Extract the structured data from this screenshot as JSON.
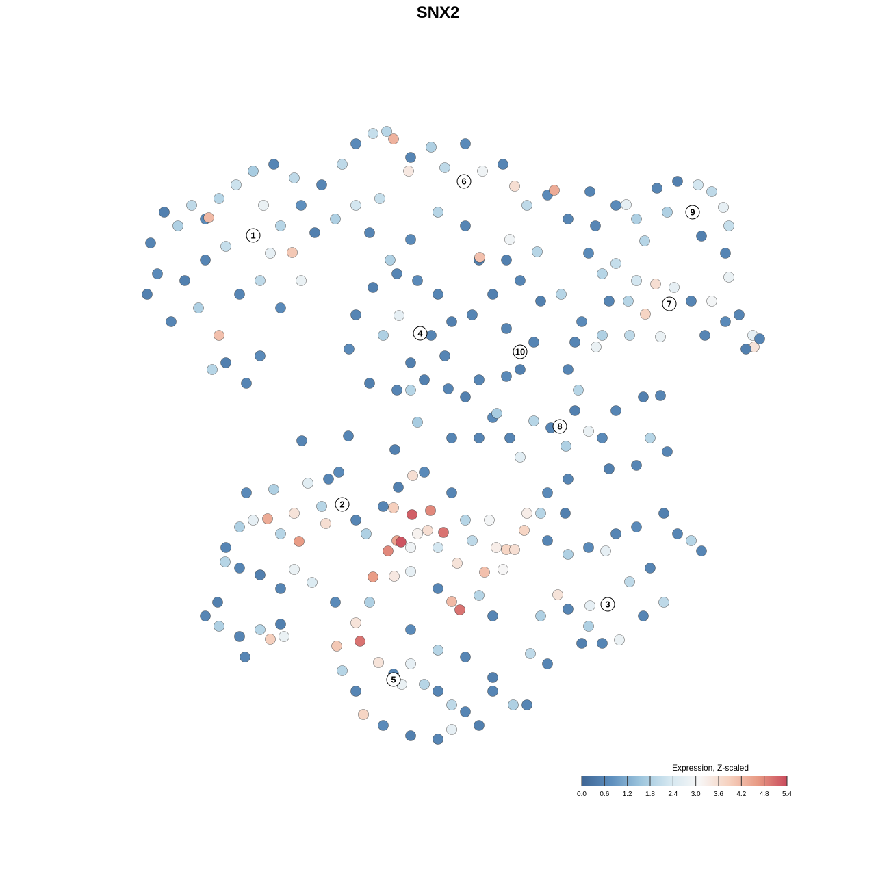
{
  "chart_data": {
    "type": "scatter",
    "title": "SNX2",
    "xlim": [
      0,
      1280
    ],
    "ylim": [
      1280,
      0
    ],
    "x": [
      220,
      240,
      260,
      280,
      300,
      320,
      345,
      370,
      400,
      430,
      385,
      410,
      440,
      460,
      330,
      300,
      270,
      230,
      215,
      250,
      290,
      320,
      350,
      380,
      410,
      440,
      330,
      360,
      380,
      310,
      427,
      305,
      395,
      470,
      500,
      520,
      545,
      565,
      575,
      600,
      597,
      630,
      650,
      680,
      705,
      735,
      752,
      770,
      800,
      810,
      830,
      555,
      520,
      490,
      540,
      600,
      640,
      680,
      700,
      701,
      745,
      785,
      740,
      520,
      545,
      580,
      610,
      640,
      660,
      650,
      620,
      580,
      540,
      510,
      560,
      583,
      600,
      630,
      600,
      570,
      760,
      790,
      820,
      740,
      780,
      760,
      740,
      690,
      720,
      680,
      700,
      655,
      870,
      900,
      915,
      930,
      960,
      990,
      1020,
      1040,
      1057,
      1065,
      1060,
      1065,
      1025,
      975,
      942,
      862,
      860,
      880,
      900,
      930,
      958,
      985,
      1010,
      1040,
      1060,
      1080,
      1100,
      1102,
      1110,
      1090,
      1030,
      965,
      943,
      890,
      918,
      850,
      880,
      920,
      871,
      840,
      830,
      845,
      780,
      805,
      840,
      860,
      880,
      900,
      940,
      965,
      950,
      975,
      930,
      890,
      827,
      760,
      745,
      720,
      726,
      700,
      660,
      610,
      577,
      441,
      509,
      330,
      350,
      370,
      391,
      410,
      430,
      437,
      430,
      456,
      410,
      380,
      350,
      329,
      360,
      400,
      450,
      480,
      495,
      470,
      476,
      520,
      535,
      300,
      318,
      320,
      350,
      380,
      395,
      358,
      410,
      415,
      560,
      575,
      602,
      629,
      648,
      610,
      580,
      586,
      567,
      600,
      625,
      640,
      668,
      690,
      715,
      725,
      740,
      752,
      708,
      735,
      770,
      766,
      680,
      660,
      620,
      603,
      582,
      545,
      576,
      600,
      640,
      672,
      660,
      700,
      720,
      800,
      830,
      826,
      790,
      800,
      830,
      860,
      885,
      900,
      930,
      970,
      990,
      1010,
      1025,
      970,
      940,
      905,
      880,
      860,
      862,
      815,
      790,
      775,
      800,
      850,
      920,
      950,
      830,
      490,
      520,
      526,
      540,
      553,
      575,
      600,
      587,
      620,
      640,
      660,
      680,
      700,
      660,
      640,
      600,
      560,
      531,
      520,
      500,
      492,
      720,
      750,
      770,
      720,
      680,
      600,
      640
    ],
    "y": [
      355,
      310,
      330,
      300,
      320,
      290,
      270,
      250,
      240,
      260,
      300,
      330,
      300,
      340,
      360,
      380,
      410,
      400,
      430,
      470,
      450,
      490,
      430,
      410,
      450,
      410,
      530,
      560,
      520,
      540,
      369,
      318,
      370,
      270,
      240,
      210,
      195,
      192,
      203,
      230,
      250,
      215,
      245,
      210,
      250,
      240,
      272,
      300,
      285,
      278,
      320,
      290,
      300,
      320,
      340,
      350,
      310,
      330,
      380,
      376,
      350,
      368,
      380,
      460,
      420,
      400,
      410,
      430,
      470,
      520,
      555,
      570,
      560,
      510,
      490,
      461,
      530,
      490,
      570,
      380,
      410,
      440,
      430,
      480,
      500,
      540,
      550,
      460,
      430,
      580,
      555,
      568,
      330,
      300,
      299,
      320,
      275,
      265,
      270,
      280,
      303,
      330,
      370,
      405,
      345,
      310,
      352,
      280,
      370,
      400,
      385,
      410,
      415,
      420,
      440,
      440,
      470,
      460,
      490,
      507,
      495,
      510,
      490,
      492,
      459,
      440,
      440,
      470,
      490,
      490,
      507,
      500,
      540,
      570,
      615,
      625,
      600,
      630,
      640,
      600,
      580,
      578,
      640,
      660,
      680,
      685,
      652,
      668,
      640,
      610,
      604,
      640,
      640,
      617,
      657,
      644,
      637,
      800,
      770,
      760,
      758,
      780,
      750,
      791,
      832,
      851,
      860,
      840,
      830,
      821,
      720,
      715,
      706,
      700,
      690,
      740,
      765,
      760,
      780,
      900,
      880,
      915,
      930,
      920,
      934,
      960,
      912,
      930,
      740,
      742,
      752,
      746,
      778,
      780,
      790,
      792,
      805,
      800,
      775,
      800,
      823,
      790,
      760,
      800,
      803,
      803,
      836,
      832,
      750,
      775,
      760,
      720,
      690,
      695,
      712,
      843,
      842,
      835,
      860,
      891,
      879,
      870,
      900,
      720,
      700,
      750,
      750,
      790,
      810,
      800,
      805,
      780,
      770,
      750,
      780,
      790,
      805,
      880,
      900,
      935,
      940,
      915,
      885,
      869,
      900,
      955,
      970,
      940,
      850,
      830,
      890,
      880,
      910,
      937,
      880,
      968,
      985,
      970,
      1000,
      1000,
      1010,
      1030,
      1040,
      1060,
      1066,
      1080,
      1075,
      1060,
      1044,
      1010,
      980,
      944,
      1010,
      1030,
      1030,
      990,
      960,
      920,
      950
    ],
    "values": [
      0.6,
      0.5,
      1.8,
      2.0,
      0.7,
      1.9,
      2.2,
      1.7,
      0.6,
      2.0,
      2.8,
      1.9,
      0.8,
      0.5,
      2.1,
      0.6,
      0.5,
      0.7,
      0.5,
      0.6,
      1.8,
      4.1,
      0.6,
      2.0,
      0.7,
      2.8,
      0.5,
      0.6,
      0.7,
      1.9,
      4.0,
      4.2,
      2.7,
      0.6,
      2.0,
      0.7,
      2.1,
      1.9,
      4.3,
      0.6,
      3.4,
      1.8,
      2.0,
      0.7,
      2.9,
      0.6,
      3.6,
      2.0,
      0.7,
      4.4,
      0.6,
      2.1,
      2.3,
      1.8,
      0.6,
      0.7,
      1.9,
      0.6,
      0.5,
      4.1,
      2.9,
      1.9,
      0.5,
      0.6,
      0.5,
      0.6,
      0.7,
      0.6,
      0.5,
      0.6,
      0.5,
      0.6,
      0.5,
      0.7,
      1.8,
      2.7,
      0.5,
      0.6,
      1.9,
      1.8,
      0.6,
      0.5,
      1.9,
      0.6,
      0.6,
      0.5,
      0.7,
      0.6,
      0.5,
      0.5,
      0.6,
      0.6,
      0.6,
      0.7,
      2.7,
      1.8,
      0.6,
      0.5,
      2.3,
      2.0,
      2.7,
      2.1,
      0.6,
      2.8,
      0.5,
      1.8,
      1.9,
      0.6,
      0.7,
      1.9,
      2.1,
      2.3,
      3.6,
      2.7,
      0.6,
      3.0,
      0.7,
      0.6,
      2.7,
      3.5,
      0.6,
      0.5,
      0.6,
      2.8,
      3.8,
      0.6,
      1.9,
      0.7,
      1.8,
      2.0,
      2.8,
      0.6,
      0.6,
      1.9,
      1.9,
      0.6,
      0.5,
      2.8,
      0.7,
      0.6,
      0.5,
      0.6,
      1.9,
      0.6,
      0.6,
      0.5,
      1.8,
      2.6,
      0.6,
      0.7,
      1.7,
      0.6,
      0.6,
      1.7,
      0.5,
      0.6,
      0.6,
      0.6,
      1.8,
      2.7,
      4.4,
      1.9,
      3.5,
      4.6,
      2.8,
      2.5,
      0.6,
      0.5,
      0.6,
      1.9,
      0.7,
      1.8,
      2.6,
      0.6,
      0.7,
      1.9,
      3.6,
      0.6,
      1.8,
      0.6,
      0.5,
      1.8,
      0.6,
      1.9,
      3.9,
      0.6,
      0.5,
      2.8,
      0.6,
      3.9,
      5.2,
      4.8,
      5.0,
      3.2,
      4.5,
      5.3,
      4.8,
      2.9,
      3.6,
      2.3,
      3.5,
      2.0,
      3.0,
      3.3,
      3.8,
      3.6,
      4.1,
      3.1,
      3.3,
      3.8,
      1.9,
      0.6,
      0.7,
      3.6,
      0.5,
      4.6,
      3.4,
      2.7,
      0.6,
      5.0,
      4.2,
      1.9,
      0.6,
      0.7,
      0.6,
      0.5,
      1.9,
      0.6,
      1.8,
      0.7,
      2.7,
      0.6,
      0.7,
      0.5,
      0.6,
      1.9,
      0.6,
      2.0,
      0.6,
      2.8,
      0.6,
      1.8,
      2.7,
      3.5,
      1.8,
      2.0,
      0.6,
      0.5,
      2.0,
      0.6,
      0.6,
      0.7,
      3.5,
      5.0,
      1.8,
      3.5,
      0.6,
      2.7,
      2.8,
      1.9,
      0.6,
      2.0,
      0.6,
      0.5,
      2.7,
      0.6,
      0.5,
      0.7,
      3.8,
      0.6,
      1.9,
      4.0,
      0.6,
      1.8,
      0.6,
      0.5,
      0.6,
      0.7,
      1.9
    ],
    "cluster_labels": [
      {
        "label": "1",
        "x": 370,
        "y": 344
      },
      {
        "label": "2",
        "x": 500,
        "y": 737
      },
      {
        "label": "3",
        "x": 888,
        "y": 883
      },
      {
        "label": "4",
        "x": 614,
        "y": 487
      },
      {
        "label": "5",
        "x": 575,
        "y": 993
      },
      {
        "label": "6",
        "x": 678,
        "y": 265
      },
      {
        "label": "7",
        "x": 978,
        "y": 444
      },
      {
        "label": "8",
        "x": 818,
        "y": 623
      },
      {
        "label": "9",
        "x": 1012,
        "y": 310
      },
      {
        "label": "10",
        "x": 760,
        "y": 514
      }
    ],
    "colorbar": {
      "title": "Expression, Z-scaled",
      "clim": [
        0,
        5.4
      ],
      "colors": [
        "#3f6695",
        "#5d8ebd",
        "#9dc5dd",
        "#d4e7f0",
        "#f7f7f7",
        "#f6d2c0",
        "#e89a84",
        "#c94a5c"
      ],
      "ticks": [
        {
          "value": 0,
          "label": "0.0"
        },
        {
          "value": 0.6,
          "label": "0.6"
        },
        {
          "value": 1.2,
          "label": "1.2"
        },
        {
          "value": 1.8,
          "label": "1.8"
        },
        {
          "value": 2.4,
          "label": "2.4"
        },
        {
          "value": 3,
          "label": "3.0"
        },
        {
          "value": 3.6,
          "label": "3.6"
        },
        {
          "value": 4.2,
          "label": "4.2"
        },
        {
          "value": 4.8,
          "label": "4.8"
        },
        {
          "value": 5.4,
          "label": "5.4"
        }
      ]
    }
  }
}
